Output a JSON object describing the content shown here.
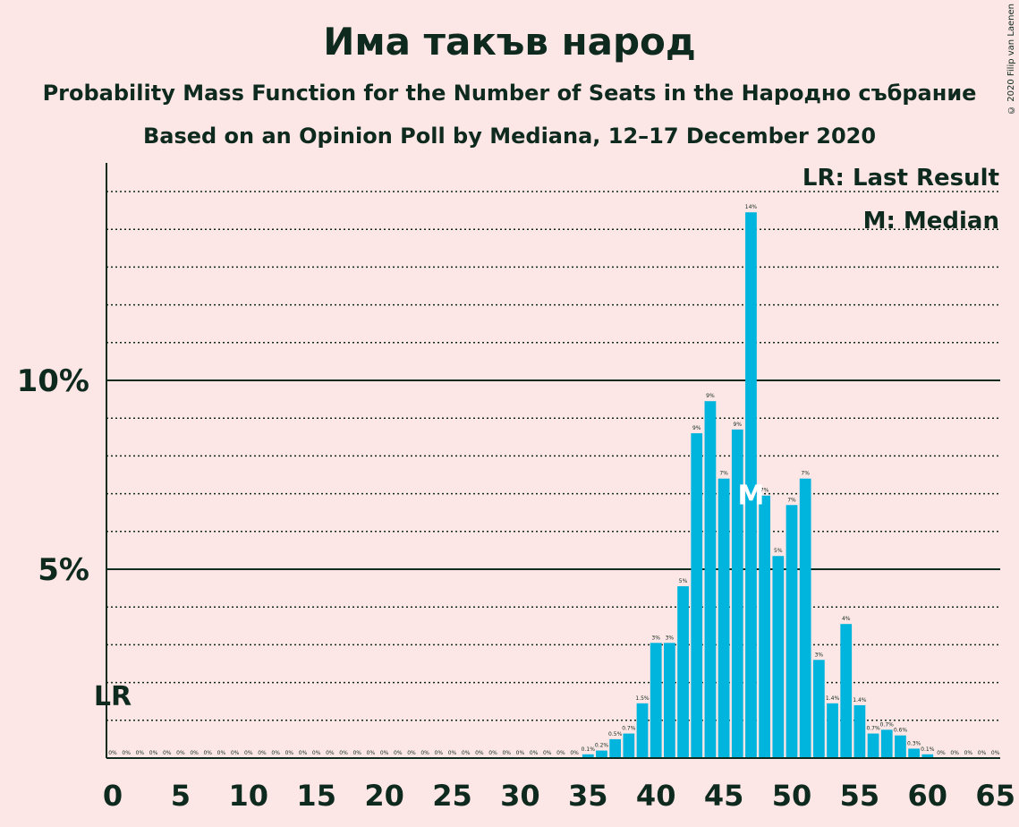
{
  "title": "Има такъв народ",
  "subtitle1": "Probability Mass Function for the Number of Seats in the Народно събрание",
  "subtitle2": "Based on an Opinion Poll by Mediana, 12–17 December 2020",
  "copyright": "© 2020 Filip van Laenen",
  "legend": {
    "lr": "LR: Last Result",
    "median": "M: Median"
  },
  "colors": {
    "background": "#fde6e6",
    "bar": "#00b5dd",
    "text": "#0e2a1e"
  },
  "chart_data": {
    "type": "bar",
    "x": [
      0,
      1,
      2,
      3,
      4,
      5,
      6,
      7,
      8,
      9,
      10,
      11,
      12,
      13,
      14,
      15,
      16,
      17,
      18,
      19,
      20,
      21,
      22,
      23,
      24,
      25,
      26,
      27,
      28,
      29,
      30,
      31,
      32,
      33,
      34,
      35,
      36,
      37,
      38,
      39,
      40,
      41,
      42,
      43,
      44,
      45,
      46,
      47,
      48,
      49,
      50,
      51,
      52,
      53,
      54,
      55,
      56,
      57,
      58,
      59,
      60,
      61,
      62,
      63,
      64,
      65
    ],
    "values": [
      0,
      0,
      0,
      0,
      0,
      0,
      0,
      0,
      0,
      0,
      0,
      0,
      0,
      0,
      0,
      0,
      0,
      0,
      0,
      0,
      0,
      0,
      0,
      0,
      0,
      0,
      0,
      0,
      0,
      0,
      0,
      0,
      0,
      0,
      0,
      0.1,
      0.2,
      0.5,
      0.65,
      1.45,
      3.05,
      3.05,
      4.55,
      8.6,
      9.45,
      7.4,
      8.7,
      14.45,
      6.95,
      5.35,
      6.7,
      7.4,
      2.6,
      1.45,
      3.55,
      1.4,
      0.65,
      0.75,
      0.6,
      0.25,
      0.1,
      0,
      0,
      0,
      0,
      0
    ],
    "value_labels": [
      "0%",
      "0%",
      "0%",
      "0%",
      "0%",
      "0%",
      "0%",
      "0%",
      "0%",
      "0%",
      "0%",
      "0%",
      "0%",
      "0%",
      "0%",
      "0%",
      "0%",
      "0%",
      "0%",
      "0%",
      "0%",
      "0%",
      "0%",
      "0%",
      "0%",
      "0%",
      "0%",
      "0%",
      "0%",
      "0%",
      "0%",
      "0%",
      "0%",
      "0%",
      "0%",
      "0.1%",
      "0.2%",
      "0.5%",
      "0.7%",
      "1.5%",
      "3%",
      "3%",
      "5%",
      "9%",
      "9%",
      "7%",
      "9%",
      "14%",
      "7%",
      "5%",
      "7%",
      "7%",
      "3%",
      "1.4%",
      "4%",
      "1.4%",
      "0.7%",
      "0.7%",
      "0.6%",
      "0.3%",
      "0.1%",
      "0%",
      "0%",
      "0%",
      "0%",
      "0%"
    ],
    "x_ticks": [
      "0",
      "5",
      "10",
      "15",
      "20",
      "25",
      "30",
      "35",
      "40",
      "45",
      "50",
      "55",
      "60",
      "65"
    ],
    "y_ticks": [
      {
        "value": 5,
        "label": "5%"
      },
      {
        "value": 10,
        "label": "10%"
      }
    ],
    "ylim": [
      0,
      15.75
    ],
    "minor_grid_step": 1,
    "last_result": {
      "seat": 0,
      "label": "LR"
    },
    "median": {
      "seat": 47,
      "label": "M"
    }
  }
}
